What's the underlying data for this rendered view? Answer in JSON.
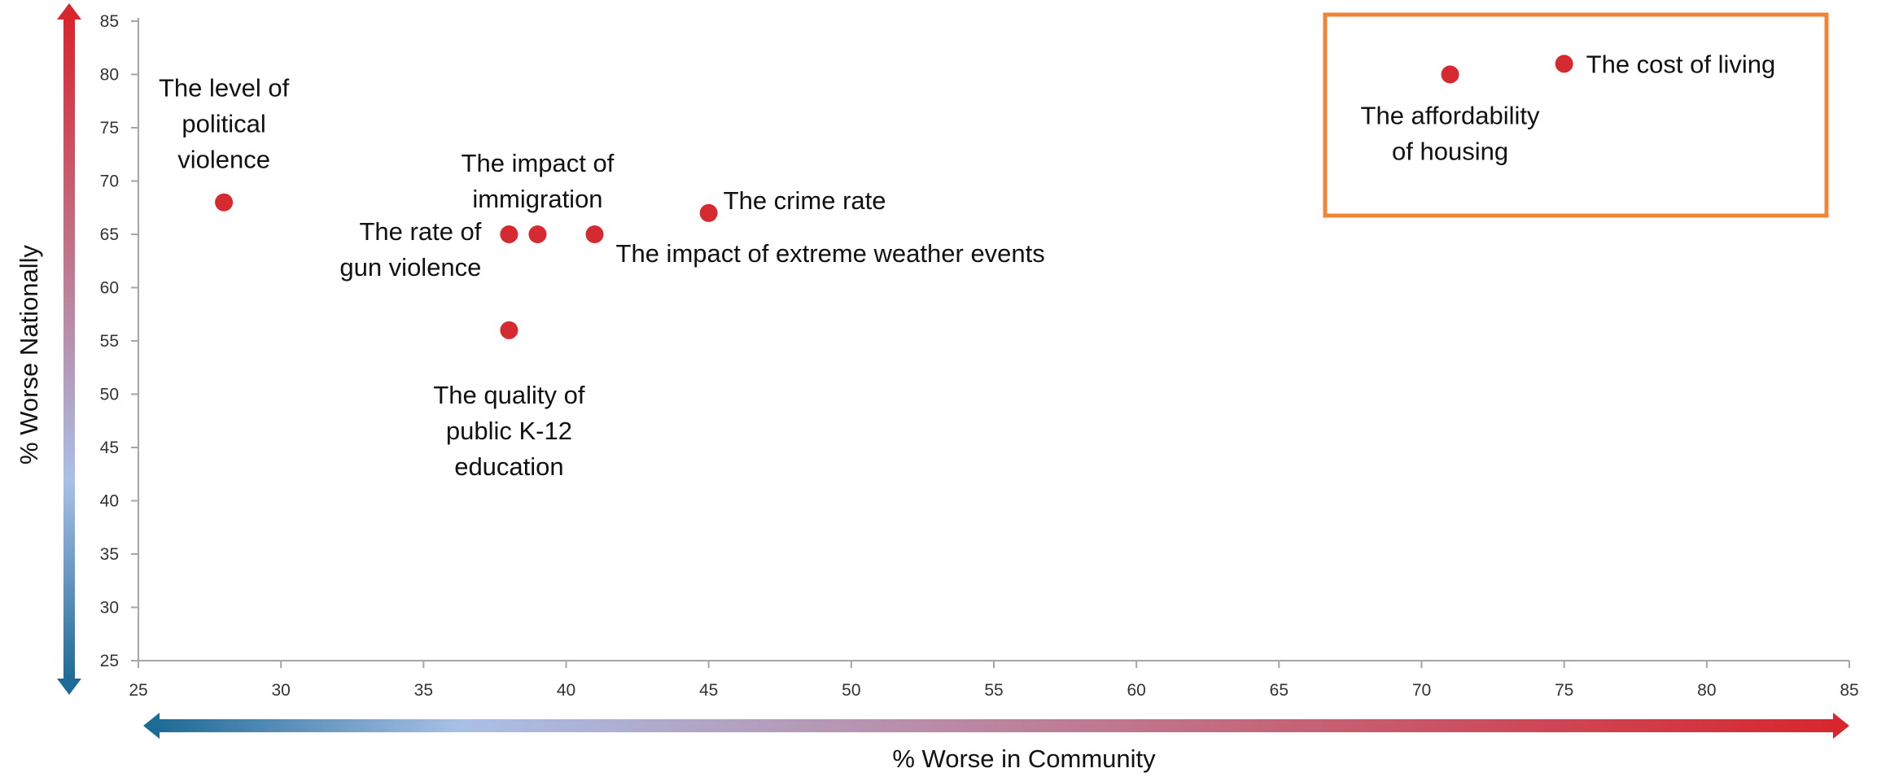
{
  "chart_data": {
    "type": "scatter",
    "title": "",
    "xlabel": "% Worse in Community",
    "ylabel": "% Worse Nationally",
    "xlim": [
      25,
      85
    ],
    "ylim": [
      25,
      85
    ],
    "x_ticks": [
      "25",
      "30",
      "35",
      "40",
      "45",
      "50",
      "55",
      "60",
      "65",
      "70",
      "75",
      "80",
      "85"
    ],
    "y_ticks": [
      "85",
      "80",
      "75",
      "70",
      "65",
      "60",
      "55",
      "50",
      "45",
      "40",
      "35",
      "30",
      "25"
    ],
    "grid": false,
    "points": [
      {
        "label_lines": [
          "The level of",
          "political",
          "violence"
        ],
        "x": 28,
        "y": 68
      },
      {
        "label_lines": [
          "The rate of",
          "gun violence"
        ],
        "x": 38,
        "y": 65
      },
      {
        "label_lines": [
          "The impact of",
          "immigration"
        ],
        "x": 39,
        "y": 65
      },
      {
        "label_lines": [
          "The impact of extreme weather events"
        ],
        "x": 41,
        "y": 65
      },
      {
        "label_lines": [
          "The crime rate"
        ],
        "x": 45,
        "y": 67
      },
      {
        "label_lines": [
          "The quality of",
          "public K-12",
          "education"
        ],
        "x": 38,
        "y": 56
      },
      {
        "label_lines": [
          "The affordability",
          "of housing"
        ],
        "x": 71,
        "y": 80
      },
      {
        "label_lines": [
          "The cost of living"
        ],
        "x": 75,
        "y": 81
      }
    ],
    "point_color": "#d42a30",
    "highlight_box_color": "#f08536",
    "gradient_low_color": "#1f6b97",
    "gradient_mid_color": "#a9c0e6",
    "gradient_high_color": "#d8262e"
  }
}
